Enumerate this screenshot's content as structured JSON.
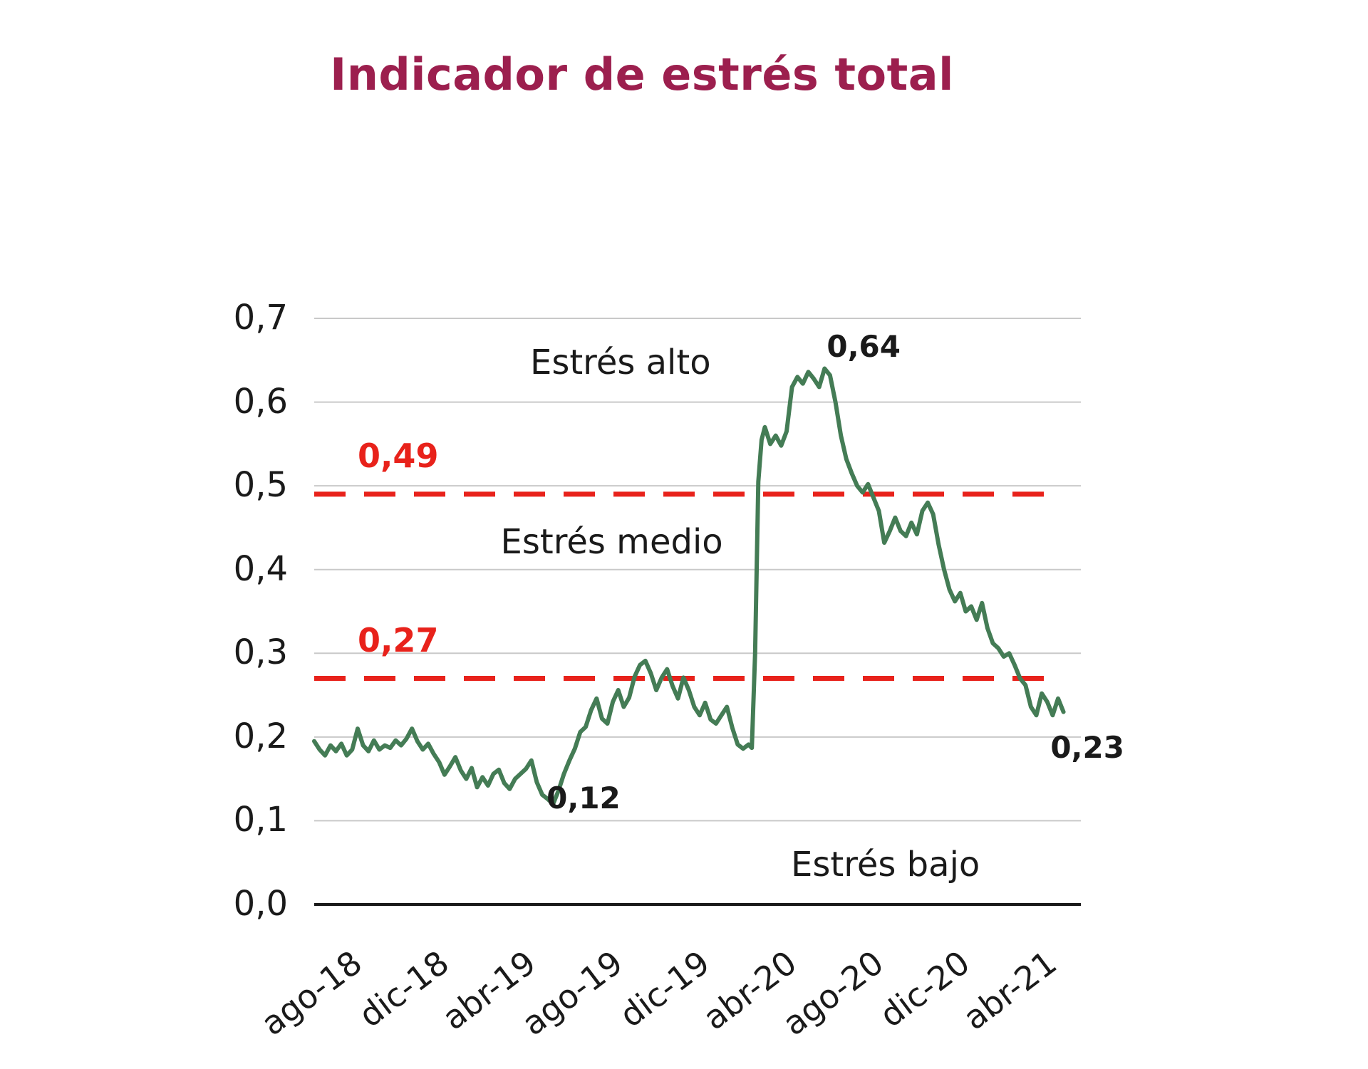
{
  "title": "Indicador de estrés total",
  "colors": {
    "background": "#ffffff",
    "title": "#9c1f4e",
    "line": "#447c55",
    "threshold": "#e8221b",
    "grid": "#c9c9c9",
    "axis": "#1a1a1a",
    "text": "#1a1a1a"
  },
  "chart_data": {
    "type": "line",
    "title": "Indicador de estrés total",
    "xlabel": "",
    "ylabel": "",
    "grid": true,
    "legend": "none",
    "x_unit": "months_since_aug_2018",
    "xlim": [
      0,
      35.3
    ],
    "ylim": [
      0,
      0.7
    ],
    "x_ticks": [
      {
        "t": 0,
        "label": "ago-18"
      },
      {
        "t": 4,
        "label": "dic-18"
      },
      {
        "t": 8,
        "label": "abr-19"
      },
      {
        "t": 12,
        "label": "ago-19"
      },
      {
        "t": 16,
        "label": "dic-19"
      },
      {
        "t": 20,
        "label": "abr-20"
      },
      {
        "t": 24,
        "label": "ago-20"
      },
      {
        "t": 28,
        "label": "dic-20"
      },
      {
        "t": 32,
        "label": "abr-21"
      }
    ],
    "y_ticks": [
      {
        "v": 0.0,
        "label": "0,0"
      },
      {
        "v": 0.1,
        "label": "0,1"
      },
      {
        "v": 0.2,
        "label": "0,2"
      },
      {
        "v": 0.3,
        "label": "0,3"
      },
      {
        "v": 0.4,
        "label": "0,4"
      },
      {
        "v": 0.5,
        "label": "0,5"
      },
      {
        "v": 0.6,
        "label": "0,6"
      },
      {
        "v": 0.7,
        "label": "0,7"
      }
    ],
    "thresholds": [
      {
        "v": 0.49,
        "label": "0,49"
      },
      {
        "v": 0.27,
        "label": "0,27"
      }
    ],
    "zone_labels": [
      {
        "text": "Estrés alto",
        "t": 14.1,
        "v": 0.645
      },
      {
        "text": "Estrés medio",
        "t": 13.7,
        "v": 0.43
      },
      {
        "text": "Estrés bajo",
        "t": 26.3,
        "v": 0.045
      }
    ],
    "point_labels": [
      {
        "text": "0,64",
        "t": 25.3,
        "v": 0.664
      },
      {
        "text": "0,12",
        "t": 12.4,
        "v": 0.125
      },
      {
        "text": "0,23",
        "t": 35.6,
        "v": 0.185
      }
    ],
    "series": [
      {
        "name": "Indicador de estrés total",
        "points": [
          [
            0,
            0.195
          ],
          [
            0.25,
            0.185
          ],
          [
            0.5,
            0.178
          ],
          [
            0.75,
            0.19
          ],
          [
            1,
            0.183
          ],
          [
            1.25,
            0.192
          ],
          [
            1.5,
            0.178
          ],
          [
            1.75,
            0.185
          ],
          [
            2,
            0.21
          ],
          [
            2.25,
            0.19
          ],
          [
            2.5,
            0.183
          ],
          [
            2.75,
            0.196
          ],
          [
            3,
            0.185
          ],
          [
            3.25,
            0.19
          ],
          [
            3.5,
            0.187
          ],
          [
            3.75,
            0.196
          ],
          [
            4,
            0.19
          ],
          [
            4.25,
            0.198
          ],
          [
            4.5,
            0.21
          ],
          [
            4.75,
            0.195
          ],
          [
            5,
            0.185
          ],
          [
            5.25,
            0.192
          ],
          [
            5.5,
            0.18
          ],
          [
            5.75,
            0.17
          ],
          [
            6,
            0.155
          ],
          [
            6.25,
            0.165
          ],
          [
            6.5,
            0.176
          ],
          [
            6.75,
            0.16
          ],
          [
            7,
            0.15
          ],
          [
            7.25,
            0.163
          ],
          [
            7.5,
            0.14
          ],
          [
            7.75,
            0.152
          ],
          [
            8,
            0.142
          ],
          [
            8.25,
            0.156
          ],
          [
            8.5,
            0.161
          ],
          [
            8.75,
            0.145
          ],
          [
            9,
            0.138
          ],
          [
            9.25,
            0.15
          ],
          [
            9.5,
            0.156
          ],
          [
            9.75,
            0.162
          ],
          [
            10,
            0.172
          ],
          [
            10.25,
            0.146
          ],
          [
            10.5,
            0.131
          ],
          [
            10.75,
            0.126
          ],
          [
            11,
            0.12
          ],
          [
            11.25,
            0.136
          ],
          [
            11.5,
            0.156
          ],
          [
            11.75,
            0.172
          ],
          [
            12,
            0.186
          ],
          [
            12.25,
            0.206
          ],
          [
            12.5,
            0.212
          ],
          [
            12.75,
            0.232
          ],
          [
            13,
            0.246
          ],
          [
            13.25,
            0.222
          ],
          [
            13.5,
            0.216
          ],
          [
            13.75,
            0.242
          ],
          [
            14,
            0.256
          ],
          [
            14.25,
            0.236
          ],
          [
            14.5,
            0.247
          ],
          [
            14.75,
            0.272
          ],
          [
            15,
            0.286
          ],
          [
            15.25,
            0.291
          ],
          [
            15.5,
            0.276
          ],
          [
            15.75,
            0.256
          ],
          [
            16,
            0.271
          ],
          [
            16.25,
            0.281
          ],
          [
            16.5,
            0.261
          ],
          [
            16.75,
            0.246
          ],
          [
            17,
            0.271
          ],
          [
            17.25,
            0.256
          ],
          [
            17.5,
            0.236
          ],
          [
            17.75,
            0.226
          ],
          [
            18,
            0.241
          ],
          [
            18.25,
            0.221
          ],
          [
            18.5,
            0.216
          ],
          [
            18.75,
            0.226
          ],
          [
            19,
            0.236
          ],
          [
            19.25,
            0.211
          ],
          [
            19.5,
            0.191
          ],
          [
            19.75,
            0.186
          ],
          [
            20,
            0.191
          ],
          [
            20.15,
            0.187
          ],
          [
            20.3,
            0.3
          ],
          [
            20.45,
            0.505
          ],
          [
            20.6,
            0.555
          ],
          [
            20.75,
            0.57
          ],
          [
            21,
            0.55
          ],
          [
            21.25,
            0.56
          ],
          [
            21.5,
            0.548
          ],
          [
            21.75,
            0.565
          ],
          [
            22,
            0.618
          ],
          [
            22.25,
            0.63
          ],
          [
            22.5,
            0.622
          ],
          [
            22.75,
            0.636
          ],
          [
            23,
            0.628
          ],
          [
            23.25,
            0.618
          ],
          [
            23.5,
            0.64
          ],
          [
            23.75,
            0.632
          ],
          [
            24,
            0.6
          ],
          [
            24.25,
            0.56
          ],
          [
            24.5,
            0.532
          ],
          [
            24.75,
            0.515
          ],
          [
            25,
            0.5
          ],
          [
            25.25,
            0.492
          ],
          [
            25.5,
            0.502
          ],
          [
            25.75,
            0.486
          ],
          [
            26,
            0.47
          ],
          [
            26.25,
            0.432
          ],
          [
            26.5,
            0.446
          ],
          [
            26.75,
            0.462
          ],
          [
            27,
            0.446
          ],
          [
            27.25,
            0.44
          ],
          [
            27.5,
            0.456
          ],
          [
            27.75,
            0.442
          ],
          [
            28,
            0.47
          ],
          [
            28.25,
            0.48
          ],
          [
            28.5,
            0.466
          ],
          [
            28.75,
            0.43
          ],
          [
            29,
            0.4
          ],
          [
            29.25,
            0.376
          ],
          [
            29.5,
            0.362
          ],
          [
            29.75,
            0.372
          ],
          [
            30,
            0.35
          ],
          [
            30.25,
            0.356
          ],
          [
            30.5,
            0.34
          ],
          [
            30.75,
            0.36
          ],
          [
            31,
            0.33
          ],
          [
            31.25,
            0.312
          ],
          [
            31.5,
            0.306
          ],
          [
            31.75,
            0.296
          ],
          [
            32,
            0.3
          ],
          [
            32.25,
            0.286
          ],
          [
            32.5,
            0.27
          ],
          [
            32.75,
            0.262
          ],
          [
            33,
            0.236
          ],
          [
            33.25,
            0.226
          ],
          [
            33.5,
            0.252
          ],
          [
            33.75,
            0.242
          ],
          [
            34,
            0.226
          ],
          [
            34.25,
            0.246
          ],
          [
            34.5,
            0.23
          ]
        ]
      }
    ]
  }
}
